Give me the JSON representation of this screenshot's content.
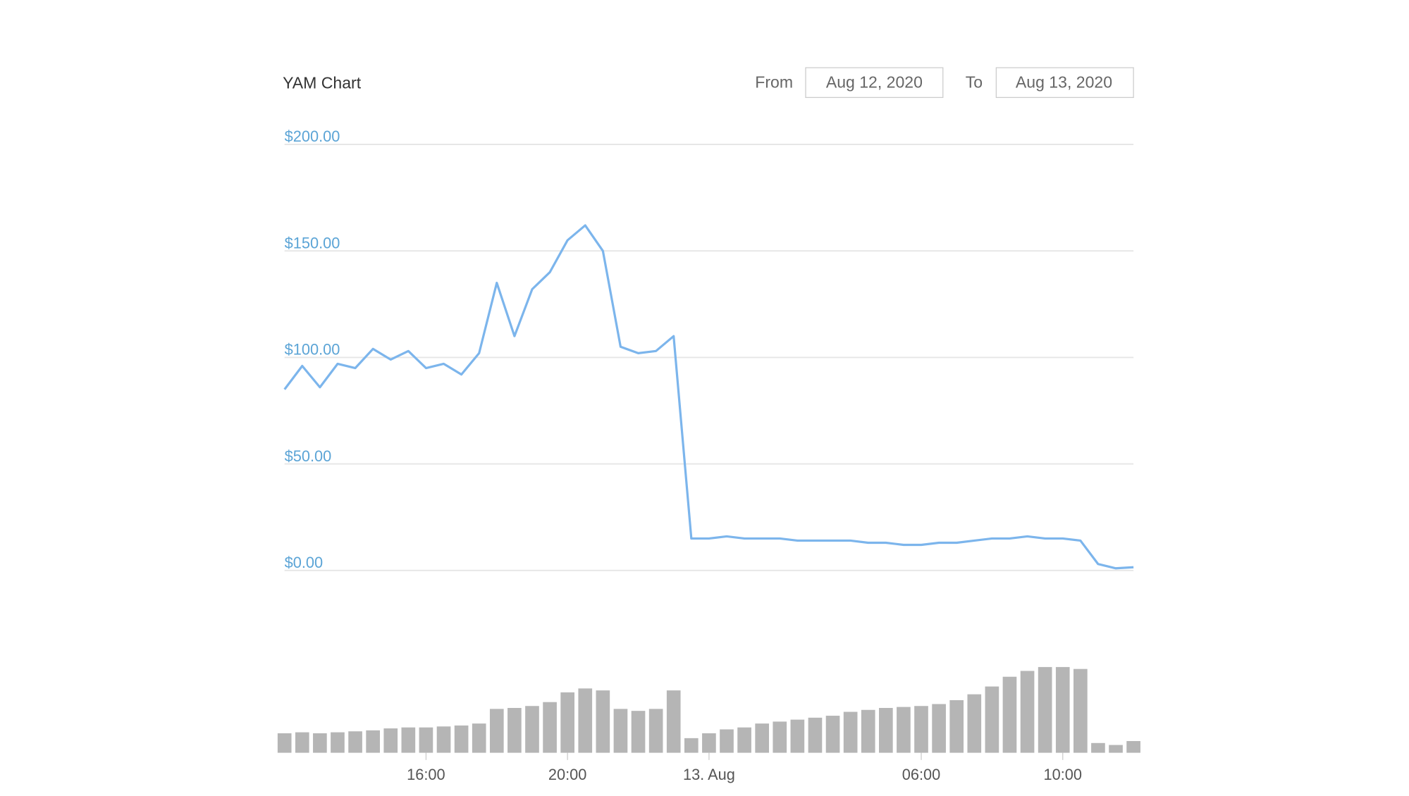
{
  "header": {
    "title": "YAM Chart",
    "from_label": "From",
    "from_date": "Aug 12, 2020",
    "to_label": "To",
    "to_date": "Aug 13, 2020"
  },
  "chart_data": {
    "type": "line",
    "color": "#7cb5ec",
    "grid": true,
    "x": [
      12,
      12.5,
      13,
      13.5,
      14,
      14.5,
      15,
      15.5,
      16,
      16.5,
      17,
      17.5,
      18,
      18.5,
      19,
      19.5,
      20,
      20.5,
      21,
      21.5,
      22,
      22.5,
      23,
      23.5,
      24,
      24.5,
      25,
      25.5,
      26,
      26.5,
      27,
      27.5,
      28,
      28.5,
      29,
      29.5,
      30,
      30.5,
      31,
      31.5,
      32,
      32.5,
      33,
      33.5,
      34,
      34.5,
      35,
      35.5,
      36
    ],
    "values": [
      85,
      96,
      86,
      97,
      95,
      104,
      99,
      103,
      95,
      97,
      92,
      102,
      135,
      110,
      132,
      140,
      155,
      162,
      150,
      105,
      102,
      103,
      110,
      15,
      15,
      16,
      15,
      15,
      15,
      14,
      14,
      14,
      14,
      13,
      13,
      12,
      12,
      13,
      13,
      14,
      15,
      15,
      16,
      15,
      15,
      14,
      3,
      1,
      1.5
    ],
    "volume": [
      20,
      21,
      20,
      21,
      22,
      23,
      25,
      26,
      26,
      27,
      28,
      30,
      45,
      46,
      48,
      52,
      62,
      66,
      64,
      45,
      43,
      45,
      64,
      15,
      20,
      24,
      26,
      30,
      32,
      34,
      36,
      38,
      42,
      44,
      46,
      47,
      48,
      50,
      54,
      60,
      68,
      78,
      84,
      88,
      88,
      86,
      10,
      8,
      12
    ],
    "xlim": [
      12,
      36
    ],
    "xticks": [
      {
        "value": 16,
        "label": "16:00"
      },
      {
        "value": 20,
        "label": "20:00"
      },
      {
        "value": 24,
        "label": "13. Aug"
      },
      {
        "value": 30,
        "label": "06:00"
      },
      {
        "value": 34,
        "label": "10:00"
      }
    ],
    "ylim": [
      0,
      200
    ],
    "yticks": [
      {
        "value": 0,
        "label": "$0.00"
      },
      {
        "value": 50,
        "label": "$50.00"
      },
      {
        "value": 100,
        "label": "$100.00"
      },
      {
        "value": 150,
        "label": "$150.00"
      },
      {
        "value": 200,
        "label": "$200.00"
      }
    ]
  }
}
